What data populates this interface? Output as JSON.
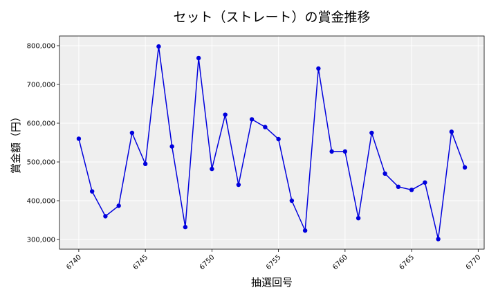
{
  "chart_data": {
    "type": "line",
    "title": "セット（ストレート）の賞金推移",
    "xlabel": "抽選回号",
    "ylabel": "賞金額（円）",
    "xlim": [
      6738.55,
      6770.45
    ],
    "ylim": [
      275000,
      825000
    ],
    "x_ticks": [
      6740,
      6745,
      6750,
      6755,
      6760,
      6765,
      6770
    ],
    "x_tick_labels": [
      "6740",
      "6745",
      "6750",
      "6755",
      "6760",
      "6765",
      "6770"
    ],
    "y_ticks": [
      300000,
      400000,
      500000,
      600000,
      700000,
      800000
    ],
    "y_tick_labels": [
      "300,000",
      "400,000",
      "500,000",
      "600,000",
      "700,000",
      "800,000"
    ],
    "grid": true,
    "colors": {
      "line": "#0000dd",
      "marker": "#0000dd",
      "plot_background": "#efefef",
      "grid": "#ffffff"
    },
    "series": [
      {
        "x": [
          6740,
          6741,
          6742,
          6743,
          6744,
          6745,
          6746,
          6747,
          6748,
          6749,
          6750,
          6751,
          6752,
          6753,
          6754,
          6755,
          6756,
          6757,
          6758,
          6759,
          6760,
          6761,
          6762,
          6763,
          6764,
          6765,
          6766,
          6767,
          6768,
          6769
        ],
        "values": [
          560000,
          424000,
          360000,
          387000,
          575000,
          495000,
          798000,
          540000,
          332000,
          768000,
          482000,
          622000,
          441000,
          610000,
          590000,
          559000,
          400000,
          323000,
          741000,
          527000,
          527000,
          355000,
          575000,
          470000,
          436000,
          428000,
          447000,
          301000,
          578000,
          486000
        ]
      }
    ]
  }
}
